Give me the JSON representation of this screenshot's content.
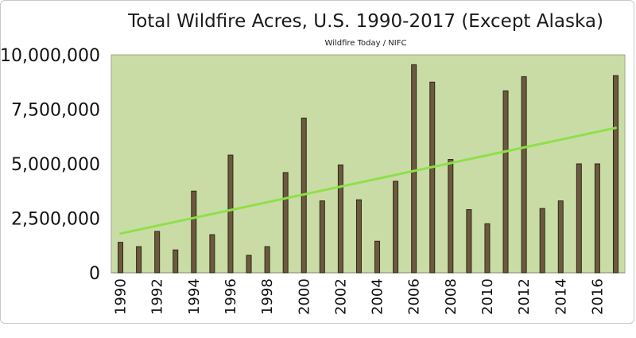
{
  "chart_data": {
    "type": "bar",
    "title": "Total Wildfire Acres, U.S. 1990-2017 (Except Alaska)",
    "subtitle": "Wildfire Today / NIFC",
    "xlabel": "",
    "ylabel": "",
    "ylim": [
      0,
      10000000
    ],
    "yticks": [
      {
        "value": 0,
        "label": "0"
      },
      {
        "value": 2500000,
        "label": "2,500,000"
      },
      {
        "value": 5000000,
        "label": "5,000,000"
      },
      {
        "value": 7500000,
        "label": "7,500,000"
      },
      {
        "value": 10000000,
        "label": "10,000,000"
      }
    ],
    "categories": [
      1990,
      1991,
      1992,
      1993,
      1994,
      1995,
      1996,
      1997,
      1998,
      1999,
      2000,
      2001,
      2002,
      2003,
      2004,
      2005,
      2006,
      2007,
      2008,
      2009,
      2010,
      2011,
      2012,
      2013,
      2014,
      2015,
      2016,
      2017
    ],
    "xtick_labels": [
      "1990",
      "1992",
      "1994",
      "1996",
      "1998",
      "2000",
      "2002",
      "2004",
      "2006",
      "2008",
      "2010",
      "2012",
      "2014",
      "2016"
    ],
    "values": [
      1400000,
      1200000,
      1900000,
      1050000,
      3750000,
      1750000,
      5400000,
      800000,
      1200000,
      4600000,
      7100000,
      3300000,
      4950000,
      3350000,
      1450000,
      4200000,
      9550000,
      8750000,
      5200000,
      2900000,
      2250000,
      8350000,
      9000000,
      2950000,
      3300000,
      5000000,
      5000000,
      9050000
    ],
    "trendline": {
      "start": 1800000,
      "end": 6650000
    },
    "grid": false,
    "legend": "none",
    "colors": {
      "plot_bg": "#cadca6",
      "bar_fill": "#6b5a3e",
      "bar_edge": "#2e2616",
      "trendline": "#8ee04a"
    }
  }
}
